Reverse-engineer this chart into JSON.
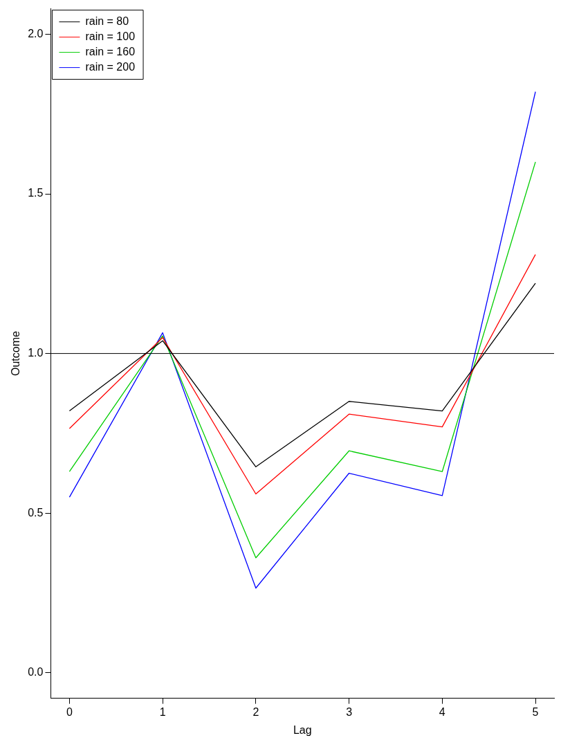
{
  "chart_data": {
    "type": "line",
    "xlabel": "Lag",
    "ylabel": "Outcome",
    "x": [
      0,
      1,
      2,
      3,
      4,
      5
    ],
    "xlim": [
      -0.2,
      5.2
    ],
    "xticks": [
      0,
      1,
      2,
      3,
      4,
      5
    ],
    "ylim": [
      -0.08,
      2.08
    ],
    "yticks": [
      {
        "value": 0,
        "label": "0.0"
      },
      {
        "value": 0.5,
        "label": "0.5"
      },
      {
        "value": 1,
        "label": "1.0"
      },
      {
        "value": 1.5,
        "label": "1.5"
      },
      {
        "value": 2,
        "label": "2.0"
      }
    ],
    "series": [
      {
        "name": "rain = 80",
        "color": "#000000",
        "values": [
          0.82,
          1.04,
          0.645,
          0.85,
          0.82,
          1.22
        ]
      },
      {
        "name": "rain = 100",
        "color": "#ff0000",
        "values": [
          0.765,
          1.05,
          0.56,
          0.81,
          0.77,
          1.31
        ]
      },
      {
        "name": "rain = 160",
        "color": "#00cd00",
        "values": [
          0.63,
          1.055,
          0.36,
          0.695,
          0.63,
          1.6
        ]
      },
      {
        "name": "rain = 200",
        "color": "#0000ff",
        "values": [
          0.55,
          1.065,
          0.265,
          0.625,
          0.555,
          1.82
        ]
      }
    ],
    "ref_lines": [
      {
        "axis": "y",
        "value": 1,
        "color": "#000000"
      }
    ],
    "legend": "top left",
    "grid": false,
    "marker": "none",
    "line_style": "solid"
  }
}
